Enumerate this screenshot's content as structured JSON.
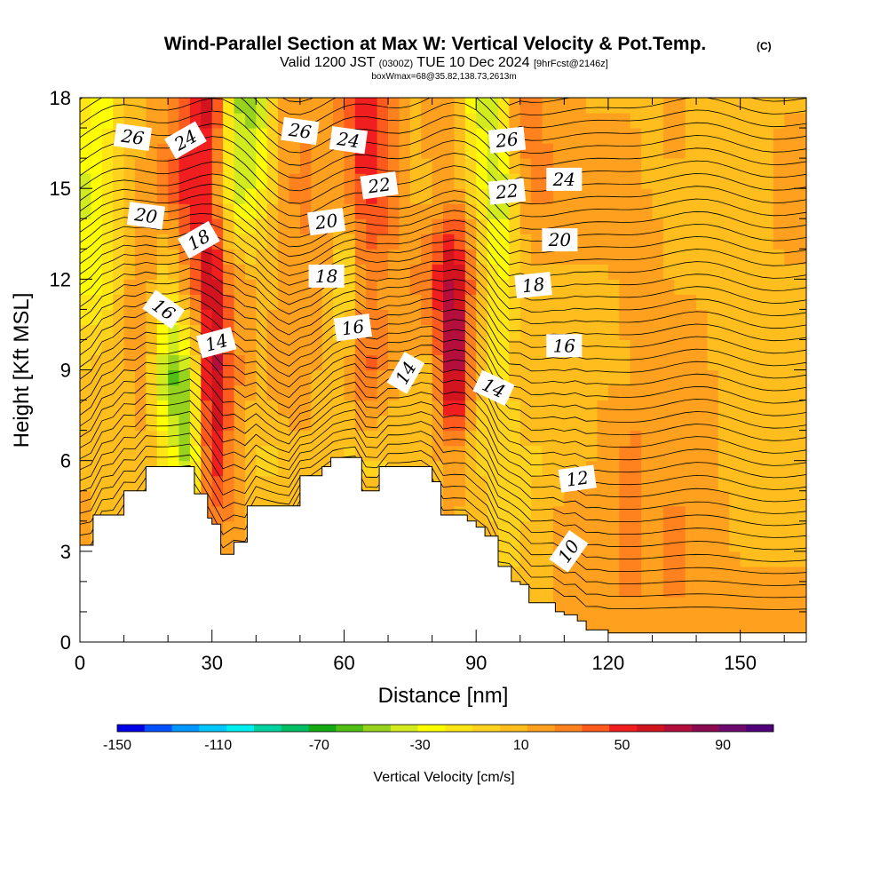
{
  "chart_data": {
    "type": "heatmap",
    "title": "Wind-Parallel Section at Max W: Vertical Velocity & Pot.Temp.",
    "title_mark": "(C)",
    "subtitle": {
      "part1": "Valid 1200 JST",
      "part2": "(0300Z)",
      "part3": "TUE 10 Dec 2024",
      "part4": "[9hrFcst@2146z]"
    },
    "subtitle2": "boxWmax=68@35.82,138.73,2613m",
    "xlabel": "Distance [nm]",
    "ylabel": "Height [Kft MSL]",
    "xlim": [
      0,
      165
    ],
    "ylim": [
      0,
      18
    ],
    "xticks": [
      0,
      30,
      60,
      90,
      120,
      150
    ],
    "yticks": [
      0,
      3,
      6,
      9,
      12,
      15,
      18
    ],
    "colorbar": {
      "label": "Vertical Velocity [cm/s]",
      "range": [
        -150,
        110
      ],
      "tick_labels": [
        -150,
        -110,
        -70,
        -30,
        10,
        50,
        90
      ],
      "colors": [
        "#0000e6",
        "#0050ff",
        "#0096ff",
        "#00c8ff",
        "#00f0f0",
        "#00d2a0",
        "#00be64",
        "#14aa14",
        "#50be14",
        "#96d21e",
        "#d2eb1e",
        "#ffff00",
        "#ffe614",
        "#ffd21e",
        "#ffbe1e",
        "#ffa01e",
        "#ff821e",
        "#ff5a1e",
        "#f01e1e",
        "#d2141e",
        "#b40f3c",
        "#8c0a50",
        "#6e0a6e",
        "#500078"
      ]
    },
    "vertical_velocity_cm_s": {
      "x_nm": [
        0,
        5,
        10,
        15,
        20,
        25,
        30,
        35,
        40,
        45,
        50,
        55,
        60,
        65,
        70,
        75,
        80,
        85,
        90,
        95,
        100,
        105,
        110,
        115,
        120,
        125,
        130,
        135,
        140,
        145,
        150,
        155,
        160,
        165
      ],
      "rows": [
        {
          "z_kft": 18,
          "w": [
            -10,
            -30,
            0,
            10,
            20,
            40,
            70,
            -40,
            -50,
            10,
            20,
            10,
            30,
            60,
            30,
            10,
            20,
            20,
            -40,
            -30,
            40,
            20,
            20,
            10,
            10,
            10,
            10,
            20,
            10,
            10,
            10,
            10,
            10,
            10
          ]
        },
        {
          "z_kft": 15,
          "w": [
            -40,
            -20,
            0,
            20,
            30,
            60,
            40,
            -40,
            -30,
            10,
            30,
            20,
            20,
            50,
            40,
            10,
            10,
            20,
            -10,
            -50,
            10,
            30,
            20,
            20,
            20,
            20,
            10,
            10,
            10,
            10,
            10,
            10,
            20,
            20
          ]
        },
        {
          "z_kft": 12,
          "w": [
            -20,
            -30,
            10,
            20,
            -10,
            30,
            70,
            20,
            10,
            10,
            20,
            20,
            -20,
            30,
            20,
            20,
            40,
            80,
            20,
            -30,
            10,
            10,
            10,
            10,
            10,
            20,
            20,
            10,
            10,
            10,
            10,
            10,
            10,
            10
          ]
        },
        {
          "z_kft": 9,
          "w": [
            0,
            10,
            10,
            20,
            -60,
            -40,
            80,
            30,
            10,
            20,
            20,
            10,
            10,
            40,
            20,
            10,
            10,
            90,
            10,
            -20,
            10,
            10,
            10,
            10,
            10,
            10,
            20,
            20,
            20,
            10,
            10,
            10,
            10,
            10
          ]
        },
        {
          "z_kft": 6,
          "w": [
            10,
            10,
            10,
            10,
            -20,
            -50,
            60,
            20,
            0,
            0,
            10,
            10,
            0,
            0,
            0,
            10,
            10,
            20,
            0,
            0,
            0,
            0,
            10,
            10,
            20,
            30,
            20,
            20,
            20,
            10,
            10,
            10,
            10,
            10
          ]
        },
        {
          "z_kft": 3,
          "w": [
            20,
            10,
            10,
            10,
            10,
            10,
            20,
            20,
            10,
            10,
            10,
            10,
            10,
            10,
            10,
            10,
            10,
            10,
            10,
            0,
            0,
            10,
            20,
            20,
            20,
            30,
            20,
            30,
            20,
            20,
            10,
            10,
            10,
            10
          ]
        },
        {
          "z_kft": 0,
          "w": [
            20,
            10,
            10,
            10,
            10,
            10,
            10,
            10,
            10,
            10,
            10,
            10,
            10,
            10,
            10,
            10,
            10,
            10,
            10,
            10,
            10,
            10,
            10,
            10,
            20,
            20,
            20,
            20,
            20,
            20,
            20,
            20,
            20,
            20
          ]
        }
      ]
    },
    "terrain_kft": {
      "x_nm": [
        0,
        3,
        5,
        10,
        15,
        20,
        25,
        26,
        29,
        30,
        32,
        35,
        38,
        40,
        45,
        50,
        55,
        57,
        60,
        64,
        65,
        68,
        72,
        75,
        80,
        82,
        85,
        88,
        90,
        92,
        95,
        98,
        100,
        102,
        105,
        108,
        110,
        113,
        115,
        120,
        125,
        130,
        135,
        140,
        145,
        150,
        155,
        160,
        165
      ],
      "height": [
        3.2,
        4.2,
        4.2,
        5.0,
        5.8,
        5.8,
        5.8,
        4.9,
        4.1,
        3.9,
        2.9,
        3.3,
        4.5,
        4.5,
        4.5,
        5.5,
        5.8,
        6.1,
        6.1,
        5.0,
        5.0,
        5.8,
        5.8,
        5.8,
        5.3,
        4.2,
        4.2,
        4.0,
        3.8,
        3.5,
        2.5,
        2.0,
        1.9,
        1.3,
        1.3,
        1.0,
        0.9,
        0.7,
        0.4,
        0.3,
        0.3,
        0.3,
        0.3,
        0.3,
        0.3,
        0.3,
        0.3,
        0.3,
        0.3
      ]
    },
    "theta_contour_labels": [
      {
        "text": "26",
        "x": 12,
        "z": 16.7,
        "angle": 8
      },
      {
        "text": "24",
        "x": 24,
        "z": 16.6,
        "angle": -30
      },
      {
        "text": "20",
        "x": 15,
        "z": 14.1,
        "angle": 8
      },
      {
        "text": "18",
        "x": 27,
        "z": 13.3,
        "angle": -30
      },
      {
        "text": "16",
        "x": 19,
        "z": 11.0,
        "angle": 35
      },
      {
        "text": "14",
        "x": 31,
        "z": 9.9,
        "angle": -15
      },
      {
        "text": "26",
        "x": 50,
        "z": 16.9,
        "angle": 8
      },
      {
        "text": "24",
        "x": 61,
        "z": 16.6,
        "angle": 8
      },
      {
        "text": "22",
        "x": 68,
        "z": 15.1,
        "angle": -8
      },
      {
        "text": "20",
        "x": 56,
        "z": 13.9,
        "angle": -8
      },
      {
        "text": "18",
        "x": 56,
        "z": 12.1,
        "angle": 0
      },
      {
        "text": "16",
        "x": 62,
        "z": 10.4,
        "angle": -8
      },
      {
        "text": "14",
        "x": 74,
        "z": 8.9,
        "angle": -60
      },
      {
        "text": "26",
        "x": 97,
        "z": 16.6,
        "angle": -6
      },
      {
        "text": "22",
        "x": 97,
        "z": 14.9,
        "angle": -6
      },
      {
        "text": "24",
        "x": 110,
        "z": 15.3,
        "angle": 0
      },
      {
        "text": "20",
        "x": 109,
        "z": 13.3,
        "angle": 0
      },
      {
        "text": "18",
        "x": 103,
        "z": 11.8,
        "angle": -6
      },
      {
        "text": "16",
        "x": 110,
        "z": 9.8,
        "angle": 0
      },
      {
        "text": "14",
        "x": 94,
        "z": 8.4,
        "angle": 25
      },
      {
        "text": "12",
        "x": 113,
        "z": 5.4,
        "angle": -8
      },
      {
        "text": "10",
        "x": 111,
        "z": 3.0,
        "angle": -55
      }
    ]
  }
}
